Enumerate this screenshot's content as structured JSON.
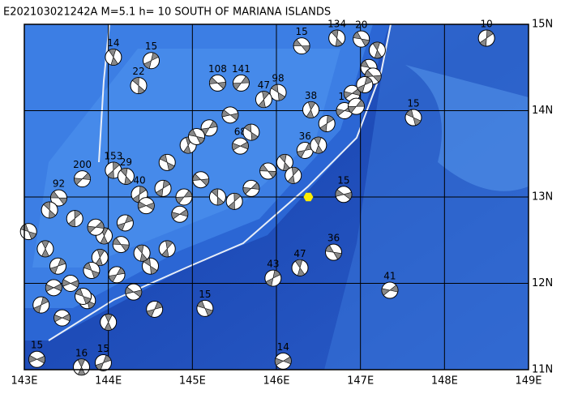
{
  "chart_data": {
    "type": "focal-map",
    "title": "E202103021242A  M=5.1  h= 10  SOUTH OF MARIANA ISLANDS",
    "xlim": [
      143,
      149
    ],
    "ylim": [
      11,
      15
    ],
    "xticks": [
      {
        "value": 143,
        "label": "143E"
      },
      {
        "value": 144,
        "label": "144E"
      },
      {
        "value": 145,
        "label": "145E"
      },
      {
        "value": 146,
        "label": "146E"
      },
      {
        "value": 147,
        "label": "147E"
      },
      {
        "value": 148,
        "label": "148E"
      },
      {
        "value": 149,
        "label": "149E"
      }
    ],
    "yticks": [
      {
        "value": 11,
        "label": "11N"
      },
      {
        "value": 12,
        "label": "12N"
      },
      {
        "value": 13,
        "label": "13N"
      },
      {
        "value": 14,
        "label": "14N"
      },
      {
        "value": 15,
        "label": "15N"
      }
    ],
    "grid": true,
    "epicenter": {
      "lon": 146.38,
      "lat": 13.0,
      "color": "#ffee00"
    },
    "events": {
      "lon": [
        146.3,
        146.72,
        148.5,
        147.35,
        146.68,
        146.28,
        145.96,
        146.08,
        145.15,
        143.68,
        143.94,
        143.15,
        147.63,
        146.41,
        146.34,
        146.8,
        146.02,
        145.85,
        145.58,
        145.3,
        144.36,
        144.06,
        143.69,
        143.41,
        144.21,
        144.37,
        146.81,
        147.01,
        144.06,
        144.51,
        145.57,
        143.05,
        143.25,
        143.4,
        143.55,
        143.75,
        143.9,
        144.1,
        144.3,
        144.5,
        144.7,
        144.9,
        145.1,
        145.3,
        145.5,
        145.7,
        145.9,
        146.1,
        146.6,
        146.9,
        147.1,
        147.2,
        143.2,
        143.45,
        143.7,
        143.95,
        144.2,
        144.45,
        144.7,
        144.95,
        145.2,
        145.45,
        145.7,
        146.2,
        146.95,
        147.15,
        143.3,
        143.6,
        143.85,
        144.15,
        144.4,
        144.65,
        144.85,
        145.05,
        146.5,
        147.05,
        143.35,
        143.8,
        144.0,
        144.55
      ],
      "lat": [
        14.75,
        14.84,
        14.84,
        11.92,
        12.36,
        12.18,
        12.06,
        11.1,
        11.71,
        11.03,
        11.08,
        11.12,
        13.92,
        14.01,
        13.54,
        13.03,
        14.21,
        14.13,
        14.32,
        14.32,
        14.29,
        13.31,
        13.21,
        12.99,
        13.24,
        13.03,
        14.0,
        14.83,
        14.62,
        14.58,
        13.59,
        12.6,
        12.4,
        12.2,
        12.0,
        11.8,
        12.3,
        12.1,
        11.9,
        12.2,
        12.4,
        13.0,
        13.2,
        13.0,
        12.95,
        13.1,
        13.3,
        13.4,
        13.85,
        14.2,
        14.5,
        14.7,
        11.75,
        11.6,
        11.85,
        12.55,
        12.7,
        12.9,
        13.4,
        13.6,
        13.8,
        13.95,
        13.75,
        13.25,
        14.05,
        14.4,
        12.85,
        12.75,
        12.65,
        12.45,
        12.35,
        13.1,
        12.8,
        13.7,
        13.6,
        14.3,
        11.95,
        12.15,
        11.55,
        11.7
      ],
      "depth": [
        15,
        134,
        10,
        41,
        36,
        47,
        43,
        14,
        15,
        16,
        15,
        15,
        15,
        38,
        36,
        15,
        98,
        47,
        141,
        108,
        22,
        153,
        200,
        92,
        29,
        40,
        18,
        20,
        14,
        15,
        68,
        null,
        null,
        null,
        null,
        null,
        null,
        null,
        null,
        null,
        null,
        null,
        null,
        null,
        null,
        null,
        null,
        null,
        null,
        null,
        null,
        null,
        null,
        null,
        null,
        null,
        null,
        null,
        null,
        null,
        null,
        null,
        null,
        null,
        null,
        null,
        null,
        null,
        null,
        null,
        null,
        null,
        null,
        null,
        null,
        null,
        null,
        null,
        null,
        null
      ]
    }
  }
}
